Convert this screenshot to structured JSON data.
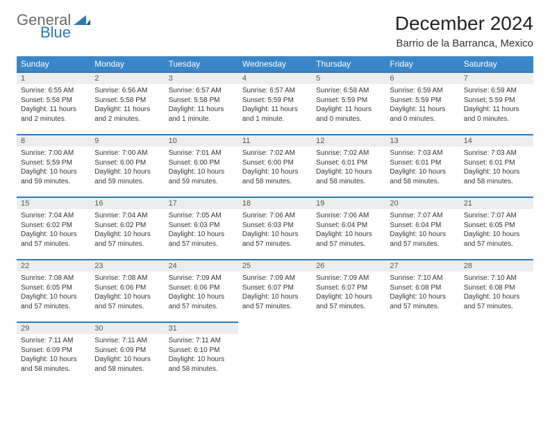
{
  "logo": {
    "word1": "General",
    "word2": "Blue",
    "gray": "#6b6b6b",
    "blue": "#2f78b8"
  },
  "title": "December 2024",
  "location": "Barrio de la Barranca, Mexico",
  "columns": [
    "Sunday",
    "Monday",
    "Tuesday",
    "Wednesday",
    "Thursday",
    "Friday",
    "Saturday"
  ],
  "header_bg": "#3b86c6",
  "header_fg": "#ffffff",
  "daynum_bg": "#ecedee",
  "border_color": "#2f78b8",
  "weeks": [
    [
      {
        "n": "1",
        "sunrise": "Sunrise: 6:55 AM",
        "sunset": "Sunset: 5:58 PM",
        "daylight": "Daylight: 11 hours and 2 minutes."
      },
      {
        "n": "2",
        "sunrise": "Sunrise: 6:56 AM",
        "sunset": "Sunset: 5:58 PM",
        "daylight": "Daylight: 11 hours and 2 minutes."
      },
      {
        "n": "3",
        "sunrise": "Sunrise: 6:57 AM",
        "sunset": "Sunset: 5:58 PM",
        "daylight": "Daylight: 11 hours and 1 minute."
      },
      {
        "n": "4",
        "sunrise": "Sunrise: 6:57 AM",
        "sunset": "Sunset: 5:59 PM",
        "daylight": "Daylight: 11 hours and 1 minute."
      },
      {
        "n": "5",
        "sunrise": "Sunrise: 6:58 AM",
        "sunset": "Sunset: 5:59 PM",
        "daylight": "Daylight: 11 hours and 0 minutes."
      },
      {
        "n": "6",
        "sunrise": "Sunrise: 6:59 AM",
        "sunset": "Sunset: 5:59 PM",
        "daylight": "Daylight: 11 hours and 0 minutes."
      },
      {
        "n": "7",
        "sunrise": "Sunrise: 6:59 AM",
        "sunset": "Sunset: 5:59 PM",
        "daylight": "Daylight: 11 hours and 0 minutes."
      }
    ],
    [
      {
        "n": "8",
        "sunrise": "Sunrise: 7:00 AM",
        "sunset": "Sunset: 5:59 PM",
        "daylight": "Daylight: 10 hours and 59 minutes."
      },
      {
        "n": "9",
        "sunrise": "Sunrise: 7:00 AM",
        "sunset": "Sunset: 6:00 PM",
        "daylight": "Daylight: 10 hours and 59 minutes."
      },
      {
        "n": "10",
        "sunrise": "Sunrise: 7:01 AM",
        "sunset": "Sunset: 6:00 PM",
        "daylight": "Daylight: 10 hours and 59 minutes."
      },
      {
        "n": "11",
        "sunrise": "Sunrise: 7:02 AM",
        "sunset": "Sunset: 6:00 PM",
        "daylight": "Daylight: 10 hours and 58 minutes."
      },
      {
        "n": "12",
        "sunrise": "Sunrise: 7:02 AM",
        "sunset": "Sunset: 6:01 PM",
        "daylight": "Daylight: 10 hours and 58 minutes."
      },
      {
        "n": "13",
        "sunrise": "Sunrise: 7:03 AM",
        "sunset": "Sunset: 6:01 PM",
        "daylight": "Daylight: 10 hours and 58 minutes."
      },
      {
        "n": "14",
        "sunrise": "Sunrise: 7:03 AM",
        "sunset": "Sunset: 6:01 PM",
        "daylight": "Daylight: 10 hours and 58 minutes."
      }
    ],
    [
      {
        "n": "15",
        "sunrise": "Sunrise: 7:04 AM",
        "sunset": "Sunset: 6:02 PM",
        "daylight": "Daylight: 10 hours and 57 minutes."
      },
      {
        "n": "16",
        "sunrise": "Sunrise: 7:04 AM",
        "sunset": "Sunset: 6:02 PM",
        "daylight": "Daylight: 10 hours and 57 minutes."
      },
      {
        "n": "17",
        "sunrise": "Sunrise: 7:05 AM",
        "sunset": "Sunset: 6:03 PM",
        "daylight": "Daylight: 10 hours and 57 minutes."
      },
      {
        "n": "18",
        "sunrise": "Sunrise: 7:06 AM",
        "sunset": "Sunset: 6:03 PM",
        "daylight": "Daylight: 10 hours and 57 minutes."
      },
      {
        "n": "19",
        "sunrise": "Sunrise: 7:06 AM",
        "sunset": "Sunset: 6:04 PM",
        "daylight": "Daylight: 10 hours and 57 minutes."
      },
      {
        "n": "20",
        "sunrise": "Sunrise: 7:07 AM",
        "sunset": "Sunset: 6:04 PM",
        "daylight": "Daylight: 10 hours and 57 minutes."
      },
      {
        "n": "21",
        "sunrise": "Sunrise: 7:07 AM",
        "sunset": "Sunset: 6:05 PM",
        "daylight": "Daylight: 10 hours and 57 minutes."
      }
    ],
    [
      {
        "n": "22",
        "sunrise": "Sunrise: 7:08 AM",
        "sunset": "Sunset: 6:05 PM",
        "daylight": "Daylight: 10 hours and 57 minutes."
      },
      {
        "n": "23",
        "sunrise": "Sunrise: 7:08 AM",
        "sunset": "Sunset: 6:06 PM",
        "daylight": "Daylight: 10 hours and 57 minutes."
      },
      {
        "n": "24",
        "sunrise": "Sunrise: 7:09 AM",
        "sunset": "Sunset: 6:06 PM",
        "daylight": "Daylight: 10 hours and 57 minutes."
      },
      {
        "n": "25",
        "sunrise": "Sunrise: 7:09 AM",
        "sunset": "Sunset: 6:07 PM",
        "daylight": "Daylight: 10 hours and 57 minutes."
      },
      {
        "n": "26",
        "sunrise": "Sunrise: 7:09 AM",
        "sunset": "Sunset: 6:07 PM",
        "daylight": "Daylight: 10 hours and 57 minutes."
      },
      {
        "n": "27",
        "sunrise": "Sunrise: 7:10 AM",
        "sunset": "Sunset: 6:08 PM",
        "daylight": "Daylight: 10 hours and 57 minutes."
      },
      {
        "n": "28",
        "sunrise": "Sunrise: 7:10 AM",
        "sunset": "Sunset: 6:08 PM",
        "daylight": "Daylight: 10 hours and 57 minutes."
      }
    ],
    [
      {
        "n": "29",
        "sunrise": "Sunrise: 7:11 AM",
        "sunset": "Sunset: 6:09 PM",
        "daylight": "Daylight: 10 hours and 58 minutes."
      },
      {
        "n": "30",
        "sunrise": "Sunrise: 7:11 AM",
        "sunset": "Sunset: 6:09 PM",
        "daylight": "Daylight: 10 hours and 58 minutes."
      },
      {
        "n": "31",
        "sunrise": "Sunrise: 7:11 AM",
        "sunset": "Sunset: 6:10 PM",
        "daylight": "Daylight: 10 hours and 58 minutes."
      },
      null,
      null,
      null,
      null
    ]
  ]
}
